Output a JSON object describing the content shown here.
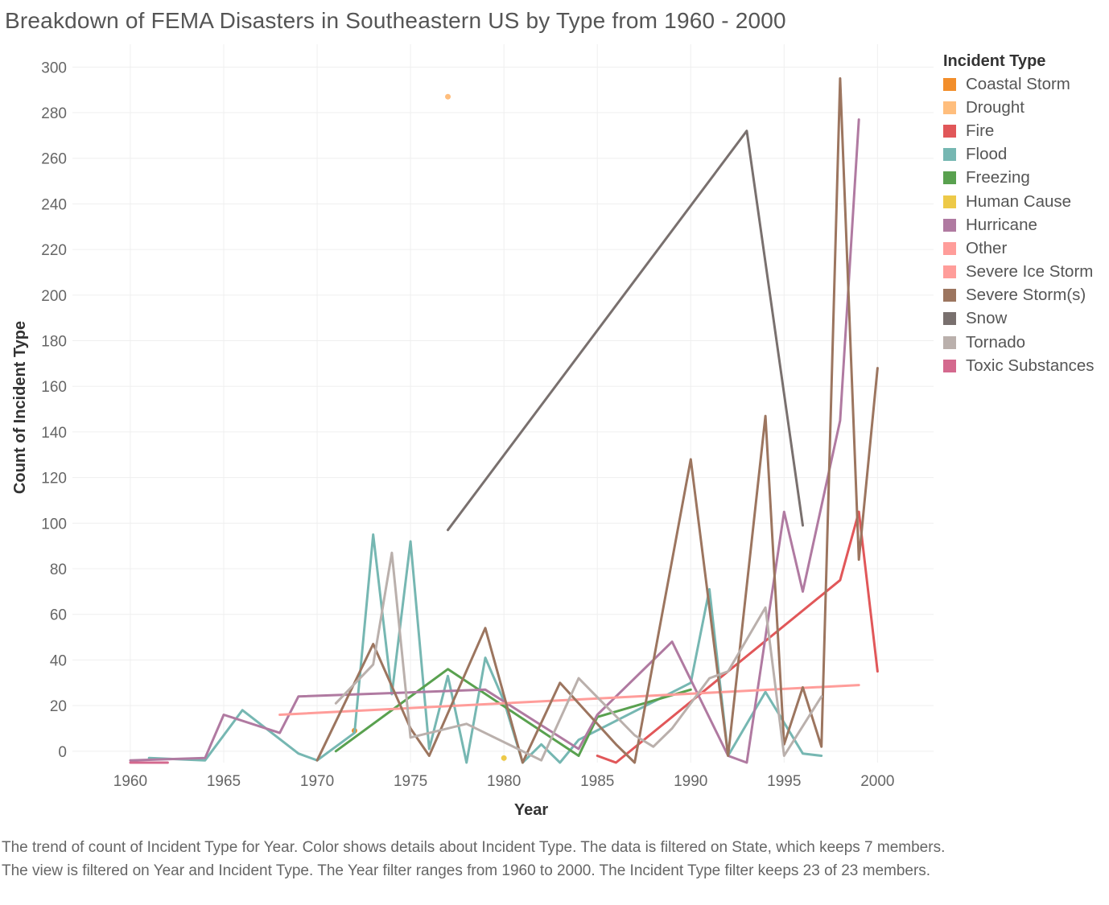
{
  "chart_data": {
    "type": "line",
    "title": "Breakdown of FEMA Disasters in Southeastern US by Type from 1960 - 2000",
    "xlabel": "Year",
    "ylabel": "Count of Incident Type",
    "xlim": [
      1956.9,
      2003
    ],
    "ylim": [
      -5,
      310
    ],
    "x_ticks": [
      1960,
      1965,
      1970,
      1975,
      1980,
      1985,
      1990,
      1995,
      2000
    ],
    "y_ticks": [
      0,
      20,
      40,
      60,
      80,
      100,
      120,
      140,
      160,
      180,
      200,
      220,
      240,
      260,
      280,
      300
    ],
    "grid": true,
    "legend": {
      "title": "Incident Type",
      "position": "right"
    },
    "series": [
      {
        "name": "Coastal Storm",
        "color": "#F28E2B",
        "points": [
          [
            1972,
            9
          ]
        ]
      },
      {
        "name": "Drought",
        "color": "#FFBE7D",
        "points": [
          [
            1977,
            287
          ]
        ]
      },
      {
        "name": "Fire",
        "color": "#E15759",
        "points": [
          [
            1985,
            -2
          ],
          [
            1986,
            -5
          ],
          [
            1998,
            75
          ],
          [
            1999,
            105
          ],
          [
            2000,
            35
          ]
        ]
      },
      {
        "name": "Flood",
        "color": "#76B7B2",
        "points": [
          [
            1961,
            -3
          ],
          [
            1964,
            -4
          ],
          [
            1966,
            18
          ],
          [
            1969,
            -1
          ],
          [
            1970,
            -4
          ],
          [
            1972,
            8
          ],
          [
            1973,
            95
          ],
          [
            1974,
            25
          ],
          [
            1975,
            92
          ],
          [
            1976,
            1
          ],
          [
            1977,
            33
          ],
          [
            1978,
            -5
          ],
          [
            1979,
            41
          ],
          [
            1980,
            22
          ],
          [
            1981,
            -5
          ],
          [
            1982,
            3
          ],
          [
            1983,
            -5
          ],
          [
            1984,
            5
          ],
          [
            1990,
            30
          ],
          [
            1991,
            71
          ],
          [
            1992,
            -2
          ],
          [
            1994,
            26
          ],
          [
            1996,
            -1
          ],
          [
            1997,
            -2
          ]
        ]
      },
      {
        "name": "Freezing",
        "color": "#59A14F",
        "points": [
          [
            1971,
            0
          ],
          [
            1977,
            36
          ],
          [
            1984,
            -2
          ],
          [
            1985,
            15
          ],
          [
            1990,
            27
          ]
        ]
      },
      {
        "name": "Human Cause",
        "color": "#EDC948",
        "points": [
          [
            1980,
            -3
          ]
        ]
      },
      {
        "name": "Hurricane",
        "color": "#B07AA1",
        "points": [
          [
            1960,
            -4
          ],
          [
            1964,
            -3
          ],
          [
            1965,
            16
          ],
          [
            1968,
            8
          ],
          [
            1969,
            24
          ],
          [
            1979,
            27
          ],
          [
            1984,
            1
          ],
          [
            1985,
            16
          ],
          [
            1989,
            48
          ],
          [
            1992,
            -2
          ],
          [
            1993,
            -5
          ],
          [
            1995,
            105
          ],
          [
            1996,
            70
          ],
          [
            1998,
            145
          ],
          [
            1999,
            277
          ]
        ]
      },
      {
        "name": "Other",
        "color": "#FF9D9A",
        "points": [
          [
            1968,
            16
          ],
          [
            1999,
            29
          ]
        ]
      },
      {
        "name": "Severe Ice Storm",
        "color": "#FF9D9A",
        "points": []
      },
      {
        "name": "Severe Storm(s)",
        "color": "#9C755F",
        "points": [
          [
            1970,
            -4
          ],
          [
            1973,
            47
          ],
          [
            1975,
            10
          ],
          [
            1976,
            -2
          ],
          [
            1979,
            54
          ],
          [
            1981,
            -5
          ],
          [
            1983,
            30
          ],
          [
            1986,
            3
          ],
          [
            1987,
            -5
          ],
          [
            1990,
            128
          ],
          [
            1992,
            -2
          ],
          [
            1994,
            147
          ],
          [
            1995,
            3
          ],
          [
            1996,
            28
          ],
          [
            1997,
            2
          ],
          [
            1998,
            295
          ],
          [
            1999,
            84
          ],
          [
            2000,
            168
          ]
        ]
      },
      {
        "name": "Snow",
        "color": "#79706E",
        "points": [
          [
            1977,
            97
          ],
          [
            1993,
            272
          ],
          [
            1996,
            99
          ]
        ]
      },
      {
        "name": "Tornado",
        "color": "#BAB0AC",
        "points": [
          [
            1971,
            21
          ],
          [
            1973,
            38
          ],
          [
            1974,
            87
          ],
          [
            1975,
            6
          ],
          [
            1978,
            12
          ],
          [
            1982,
            -4
          ],
          [
            1984,
            32
          ],
          [
            1987,
            7
          ],
          [
            1988,
            2
          ],
          [
            1989,
            10
          ],
          [
            1991,
            32
          ],
          [
            1992,
            35
          ],
          [
            1994,
            63
          ],
          [
            1995,
            -2
          ],
          [
            1997,
            24
          ]
        ]
      },
      {
        "name": "Toxic Substances",
        "color": "#D4698E",
        "points": [
          [
            1960,
            -5
          ],
          [
            1962,
            -5
          ]
        ]
      }
    ]
  },
  "caption": "The trend of count of Incident Type for Year.  Color shows details about Incident Type. The data is filtered on State, which keeps 7 members. The view is filtered on Year and Incident Type. The Year filter ranges from 1960 to 2000. The Incident Type filter keeps 23 of 23 members."
}
